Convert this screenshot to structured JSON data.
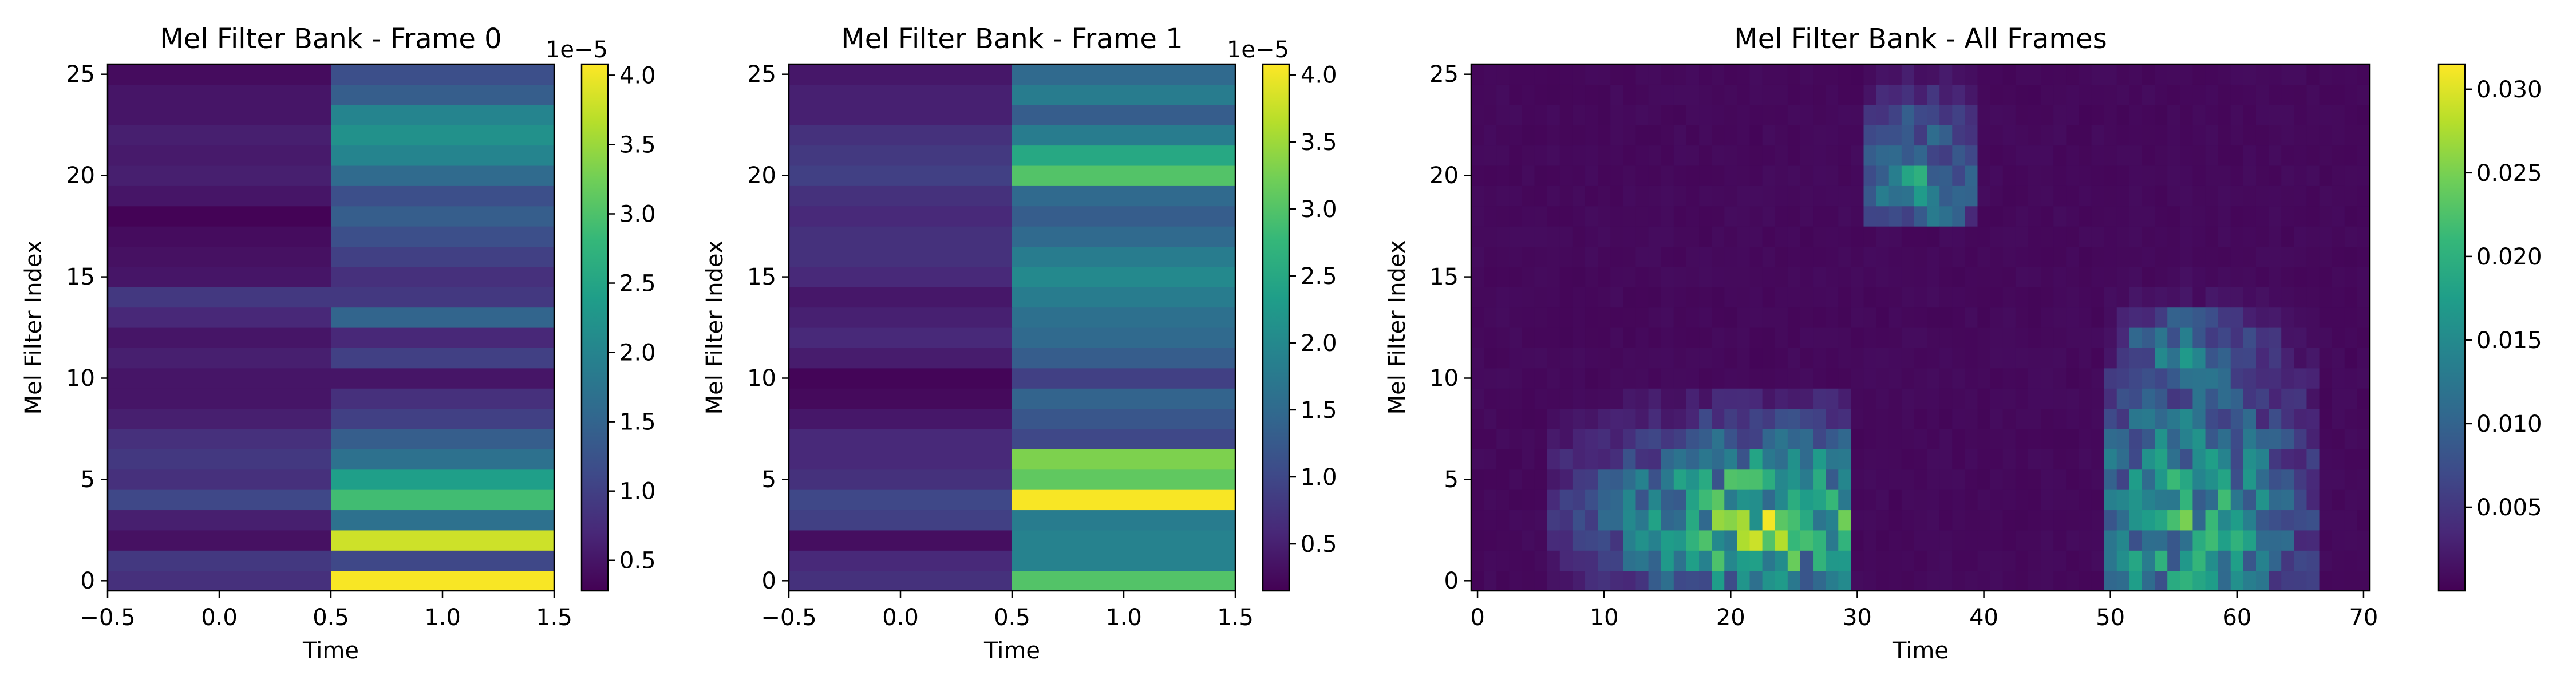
{
  "colormap": "viridis",
  "colors": {
    "frame_border": "#000000",
    "viridis_stops": [
      "#440154",
      "#482878",
      "#3e4a89",
      "#31688e",
      "#26828e",
      "#1f9e89",
      "#35b779",
      "#6ece58",
      "#b5de2b",
      "#fde725"
    ]
  },
  "chart_data": [
    {
      "type": "heatmap",
      "title": "Mel Filter Bank - Frame 0",
      "xlabel": "Time",
      "ylabel": "Mel Filter Index",
      "xlim": [
        -0.5,
        1.5
      ],
      "ylim": [
        -0.5,
        25.5
      ],
      "x_ticks": [
        "−0.5",
        "0.0",
        "0.5",
        "1.0",
        "1.5"
      ],
      "y_ticks": [
        "0",
        "5",
        "10",
        "15",
        "20",
        "25"
      ],
      "columns": [
        0,
        1
      ],
      "rows": 26,
      "colorbar": {
        "min": 0.28,
        "max": 4.08,
        "ticks": [
          "0.5",
          "1.0",
          "1.5",
          "2.0",
          "2.5",
          "3.0",
          "3.5",
          "4.0"
        ],
        "offset_text": "1e−5"
      },
      "values": [
        [
          0.8,
          4.05
        ],
        [
          0.9,
          1.1
        ],
        [
          0.45,
          3.8
        ],
        [
          0.6,
          1.7
        ],
        [
          1.1,
          2.9
        ],
        [
          0.8,
          2.4
        ],
        [
          0.9,
          1.7
        ],
        [
          0.8,
          1.4
        ],
        [
          0.6,
          1.0
        ],
        [
          0.5,
          0.8
        ],
        [
          0.5,
          0.5
        ],
        [
          0.6,
          1.0
        ],
        [
          0.5,
          0.7
        ],
        [
          0.7,
          1.5
        ],
        [
          0.9,
          0.9
        ],
        [
          0.5,
          0.8
        ],
        [
          0.45,
          1.0
        ],
        [
          0.4,
          1.2
        ],
        [
          0.3,
          1.4
        ],
        [
          0.5,
          1.2
        ],
        [
          0.6,
          1.6
        ],
        [
          0.55,
          2.0
        ],
        [
          0.6,
          2.2
        ],
        [
          0.5,
          2.0
        ],
        [
          0.5,
          1.4
        ],
        [
          0.4,
          1.2
        ]
      ]
    },
    {
      "type": "heatmap",
      "title": "Mel Filter Bank - Frame 1",
      "xlabel": "Time",
      "ylabel": "Mel Filter Index",
      "xlim": [
        -0.5,
        1.5
      ],
      "ylim": [
        -0.5,
        25.5
      ],
      "x_ticks": [
        "−0.5",
        "0.0",
        "0.5",
        "1.0",
        "1.5"
      ],
      "y_ticks": [
        "0",
        "5",
        "10",
        "15",
        "20",
        "25"
      ],
      "columns": [
        0,
        1
      ],
      "rows": 26,
      "colorbar": {
        "min": 0.15,
        "max": 4.08,
        "ticks": [
          "0.5",
          "1.0",
          "1.5",
          "2.0",
          "2.5",
          "3.0",
          "3.5",
          "4.0"
        ],
        "offset_text": "1e−5"
      },
      "values": [
        [
          0.7,
          3.0
        ],
        [
          0.6,
          1.9
        ],
        [
          0.3,
          1.9
        ],
        [
          0.9,
          1.8
        ],
        [
          1.0,
          4.05
        ],
        [
          0.7,
          3.1
        ],
        [
          0.6,
          3.3
        ],
        [
          0.6,
          1.0
        ],
        [
          0.4,
          1.2
        ],
        [
          0.25,
          1.4
        ],
        [
          0.2,
          0.9
        ],
        [
          0.45,
          1.3
        ],
        [
          0.6,
          1.5
        ],
        [
          0.5,
          1.6
        ],
        [
          0.4,
          1.8
        ],
        [
          0.6,
          2.0
        ],
        [
          0.7,
          1.8
        ],
        [
          0.7,
          1.5
        ],
        [
          0.6,
          1.3
        ],
        [
          0.7,
          1.5
        ],
        [
          0.9,
          3.0
        ],
        [
          0.8,
          2.5
        ],
        [
          0.7,
          1.8
        ],
        [
          0.5,
          1.3
        ],
        [
          0.5,
          1.8
        ],
        [
          0.4,
          1.5
        ]
      ]
    },
    {
      "type": "heatmap",
      "title": "Mel Filter Bank - All Frames",
      "xlabel": "",
      "ylabel": "Mel Filter Index",
      "xlim": [
        -0.5,
        70.5
      ],
      "ylim": [
        -0.5,
        25.5
      ],
      "x_ticks": [
        "0",
        "10",
        "20",
        "30",
        "40",
        "50",
        "60",
        "70"
      ],
      "y_ticks": [
        "0",
        "5",
        "10",
        "15",
        "20",
        "25"
      ],
      "columns": 71,
      "rows": 26,
      "colorbar": {
        "min": 0.0,
        "max": 0.0315,
        "ticks": [
          "0.005",
          "0.010",
          "0.015",
          "0.020",
          "0.025",
          "0.030"
        ]
      },
      "energy_regions": [
        {
          "x_range": [
            6,
            29
          ],
          "y_range": [
            0,
            9
          ],
          "peak": 0.031,
          "peak_at": [
            23,
            3
          ]
        },
        {
          "x_range": [
            31,
            39
          ],
          "y_range": [
            18,
            25
          ],
          "peak": 0.02,
          "peak_at": [
            35,
            20
          ]
        },
        {
          "x_range": [
            50,
            66
          ],
          "y_range": [
            0,
            16
          ],
          "peak": 0.025,
          "peak_at": [
            56,
            3
          ]
        },
        {
          "x_range": [
            51,
            63
          ],
          "y_range": [
            8,
            13
          ],
          "peak": 0.017,
          "peak_at": [
            56,
            11
          ]
        }
      ],
      "x_axis_caption": "Time"
    }
  ]
}
